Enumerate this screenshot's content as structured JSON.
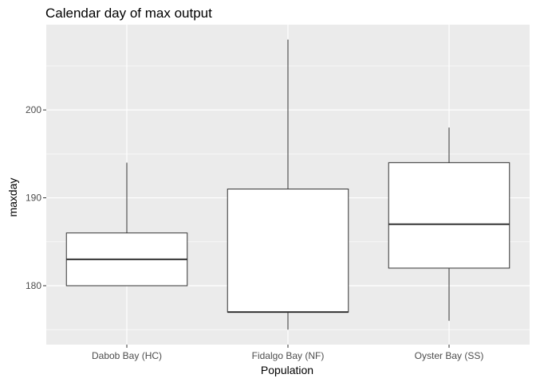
{
  "chart_data": {
    "type": "boxplot",
    "title": "Calendar day of max output",
    "xlabel": "Population",
    "ylabel": "maxday",
    "categories": [
      "Dabob Bay (HC)",
      "Fidalgo Bay (NF)",
      "Oyster Bay (SS)"
    ],
    "boxes": [
      {
        "category": "Dabob Bay (HC)",
        "min": 180,
        "q1": 180,
        "median": 183,
        "q3": 186,
        "max": 194
      },
      {
        "category": "Fidalgo Bay (NF)",
        "min": 175,
        "q1": 177,
        "median": 177,
        "q3": 191,
        "max": 208
      },
      {
        "category": "Oyster Bay (SS)",
        "min": 176,
        "q1": 182,
        "median": 187,
        "q3": 194,
        "max": 198
      }
    ],
    "yticks": [
      180,
      190,
      200
    ],
    "ylim": [
      173.3,
      209.7
    ],
    "grid": true,
    "colors": {
      "panel": "#ebebeb",
      "grid": "#ffffff",
      "box_fill": "#ffffff",
      "box_stroke": "#333333",
      "tick_text": "#4d4d4d"
    }
  }
}
